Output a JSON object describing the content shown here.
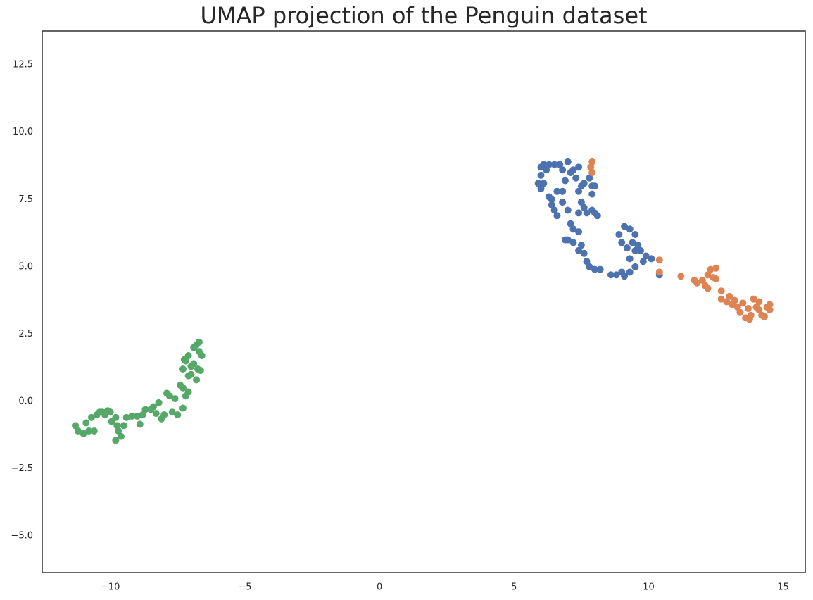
{
  "chart_data": {
    "type": "scatter",
    "title": "UMAP projection of the Penguin dataset",
    "xlim": [
      -12.53,
      15.82
    ],
    "ylim": [
      -6.36,
      13.76
    ],
    "grid": false,
    "xticks": [
      {
        "value": -10,
        "label": "−10"
      },
      {
        "value": -5,
        "label": "−5"
      },
      0,
      5,
      10,
      15
    ],
    "yticks": [
      {
        "value": -5,
        "label": "−5.0"
      },
      {
        "value": -2.5,
        "label": "−2.5"
      },
      {
        "value": 0,
        "label": "0.0"
      },
      2.5,
      {
        "value": 5,
        "label": "5.0"
      },
      7.5,
      {
        "value": 10,
        "label": "10.0"
      },
      12.5
    ],
    "series": [
      {
        "color": "#4c72b0",
        "x": [
          6.0,
          6.1,
          6.2,
          6.0,
          6.1,
          6.3,
          6.5,
          6.7,
          5.9,
          6.0,
          6.3,
          6.4,
          6.5,
          6.6,
          6.4,
          6.6,
          6.8,
          6.8,
          7.0,
          6.9,
          6.8,
          7.0,
          7.1,
          7.2,
          7.3,
          7.4,
          7.5,
          7.4,
          7.6,
          7.8,
          7.9,
          7.5,
          7.4,
          7.6,
          7.7,
          7.9,
          8.0,
          8.1,
          7.9,
          8.0,
          7.2,
          7.4,
          7.0,
          7.2,
          7.4,
          7.5,
          7.6,
          7.7,
          7.8,
          8.0,
          8.2,
          8.6,
          8.8,
          9.0,
          9.1,
          9.3,
          9.5,
          9.3,
          9.5,
          9.6,
          9.7,
          9.8,
          9.9,
          10.1,
          9.0,
          8.9,
          9.1,
          9.3,
          9.5,
          9.4,
          9.2,
          10.4,
          7.1,
          6.9
        ],
        "values": [
          8.7,
          8.8,
          8.6,
          8.4,
          8.1,
          8.8,
          8.8,
          8.8,
          8.1,
          7.9,
          7.6,
          7.3,
          7.1,
          6.9,
          7.5,
          7.8,
          7.8,
          7.4,
          7.1,
          8.2,
          8.6,
          8.9,
          8.5,
          8.6,
          8.3,
          8.7,
          8.0,
          7.8,
          8.1,
          8.3,
          8.0,
          7.4,
          7.0,
          7.2,
          7.0,
          7.1,
          7.0,
          6.9,
          7.7,
          8.0,
          6.4,
          6.3,
          6.0,
          5.9,
          5.6,
          5.8,
          5.5,
          5.2,
          5.0,
          4.9,
          4.9,
          4.7,
          4.7,
          4.8,
          4.65,
          4.8,
          5.0,
          5.3,
          5.6,
          5.8,
          5.6,
          5.2,
          5.4,
          5.3,
          5.9,
          6.2,
          6.5,
          6.4,
          6.2,
          5.9,
          5.7,
          4.7,
          6.6,
          6.0
        ]
      },
      {
        "color": "#dd8452",
        "x": [
          7.9,
          7.85,
          7.9,
          10.4,
          10.4,
          11.2,
          11.7,
          11.8,
          12.0,
          12.1,
          12.2,
          12.3,
          12.4,
          12.5,
          12.5,
          12.2,
          12.7,
          12.7,
          12.9,
          13.0,
          13.1,
          13.2,
          13.3,
          13.4,
          13.5,
          13.6,
          13.7,
          13.8,
          13.9,
          14.0,
          14.1,
          14.2,
          14.3,
          14.4,
          14.5,
          14.5,
          13.75,
          14.1
        ],
        "values": [
          8.9,
          8.7,
          8.5,
          5.25,
          4.8,
          4.65,
          4.5,
          4.4,
          4.5,
          4.3,
          4.7,
          4.9,
          4.6,
          4.95,
          4.55,
          4.2,
          4.1,
          3.8,
          3.7,
          3.9,
          3.6,
          3.75,
          3.5,
          3.3,
          3.65,
          3.1,
          3.45,
          3.2,
          3.8,
          3.5,
          3.4,
          3.2,
          3.15,
          3.5,
          3.6,
          3.4,
          3.05,
          3.7
        ]
      },
      {
        "color": "#55a868",
        "x": [
          -11.3,
          -11.2,
          -11.0,
          -10.9,
          -10.8,
          -10.7,
          -10.6,
          -10.5,
          -10.4,
          -10.3,
          -10.2,
          -10.1,
          -10.0,
          -9.95,
          -9.8,
          -9.75,
          -9.7,
          -9.8,
          -9.6,
          -9.5,
          -9.4,
          -9.2,
          -9.0,
          -8.9,
          -8.8,
          -8.7,
          -8.5,
          -8.4,
          -8.3,
          -8.2,
          -8.1,
          -8.0,
          -7.9,
          -7.8,
          -7.7,
          -7.6,
          -7.5,
          -7.4,
          -7.3,
          -7.3,
          -7.2,
          -7.1,
          -7.0,
          -7.3,
          -7.2,
          -7.1,
          -7.0,
          -6.9,
          -6.8,
          -6.8,
          -6.7,
          -6.6,
          -6.65,
          -6.7,
          -6.9,
          -7.25,
          -7.1,
          -6.75
        ],
        "values": [
          -0.9,
          -1.1,
          -1.2,
          -0.8,
          -1.1,
          -0.6,
          -1.1,
          -0.5,
          -0.4,
          -0.4,
          -0.5,
          -0.35,
          -0.4,
          -0.75,
          -0.6,
          -0.9,
          -1.1,
          -1.45,
          -1.3,
          -0.9,
          -0.6,
          -0.55,
          -0.55,
          -0.85,
          -0.5,
          -0.3,
          -0.3,
          -0.2,
          -0.45,
          -0.05,
          -0.65,
          -0.5,
          0.3,
          0.2,
          -0.4,
          0.1,
          -0.5,
          0.6,
          -0.25,
          0.5,
          0.2,
          0.35,
          1.0,
          1.2,
          1.5,
          1.7,
          1.3,
          1.4,
          0.8,
          2.1,
          2.2,
          1.7,
          1.15,
          1.85,
          2.0,
          1.55,
          0.95,
          1.2
        ]
      }
    ]
  }
}
